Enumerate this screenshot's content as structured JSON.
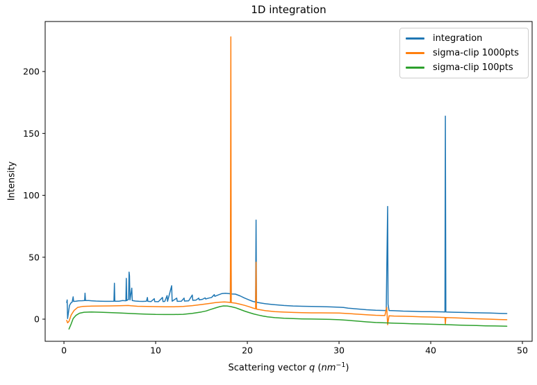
{
  "figure": {
    "title": "1D integration"
  },
  "axes": {
    "ylabel": "Intensity",
    "xlabel_parts": {
      "prefix": "Scattering vector ",
      "symbol": "q",
      "open": " (",
      "unit": "nm",
      "exponent": "−1",
      "close": ")"
    }
  },
  "legend": {
    "position": "upper right",
    "items": [
      {
        "label": "integration"
      },
      {
        "label": "sigma-clip 1000pts"
      },
      {
        "label": "sigma-clip 100pts"
      }
    ]
  },
  "chart_data": {
    "type": "line",
    "title": "1D integration",
    "xlabel": "Scattering vector q (nm⁻¹)",
    "ylabel": "Intensity",
    "xlim": [
      -2.05,
      51.06
    ],
    "ylim": [
      -17.9,
      240.4
    ],
    "xticks": [
      0,
      10,
      20,
      30,
      40,
      50
    ],
    "yticks": [
      0,
      50,
      100,
      150,
      200
    ],
    "grid": false,
    "legend_position": "upper right",
    "frame_color": "#000000",
    "line_width": 1.5,
    "series": [
      {
        "name": "integration",
        "color": "#1f77b4",
        "points": [
          [
            0.3,
            13.5
          ],
          [
            0.35,
            15.5
          ],
          [
            0.4,
            0.5
          ],
          [
            0.5,
            6
          ],
          [
            0.6,
            11
          ],
          [
            0.75,
            13
          ],
          [
            0.9,
            13.8
          ],
          [
            1.0,
            18
          ],
          [
            1.05,
            14.3
          ],
          [
            1.3,
            14.5
          ],
          [
            1.6,
            14.8
          ],
          [
            2.0,
            14.9
          ],
          [
            2.25,
            15
          ],
          [
            2.3,
            21
          ],
          [
            2.35,
            15
          ],
          [
            2.7,
            15
          ],
          [
            3.0,
            14.8
          ],
          [
            3.5,
            14.6
          ],
          [
            4.0,
            14.5
          ],
          [
            4.5,
            14.4
          ],
          [
            5.0,
            14.4
          ],
          [
            5.45,
            14.5
          ],
          [
            5.5,
            29
          ],
          [
            5.55,
            14.5
          ],
          [
            6.0,
            14.5
          ],
          [
            6.4,
            15
          ],
          [
            6.75,
            14.8
          ],
          [
            6.8,
            33
          ],
          [
            6.85,
            15
          ],
          [
            7.05,
            16
          ],
          [
            7.1,
            38
          ],
          [
            7.15,
            35
          ],
          [
            7.2,
            15.5
          ],
          [
            7.4,
            25
          ],
          [
            7.45,
            15
          ],
          [
            7.8,
            14.6
          ],
          [
            8.2,
            14.4
          ],
          [
            8.6,
            14.3
          ],
          [
            9.0,
            14.5
          ],
          [
            9.1,
            17.5
          ],
          [
            9.15,
            14.4
          ],
          [
            9.5,
            14.2
          ],
          [
            9.85,
            16.5
          ],
          [
            9.9,
            14.2
          ],
          [
            10.3,
            14.1
          ],
          [
            10.75,
            17.5
          ],
          [
            10.8,
            14.2
          ],
          [
            11.0,
            14.3
          ],
          [
            11.25,
            19
          ],
          [
            11.3,
            14.4
          ],
          [
            11.75,
            27
          ],
          [
            11.8,
            14.5
          ],
          [
            12.3,
            17
          ],
          [
            12.35,
            14.4
          ],
          [
            12.8,
            14.5
          ],
          [
            13.1,
            17
          ],
          [
            13.15,
            14.6
          ],
          [
            13.6,
            14.8
          ],
          [
            14.0,
            19.5
          ],
          [
            14.05,
            15.2
          ],
          [
            14.4,
            15.4
          ],
          [
            14.7,
            17
          ],
          [
            14.75,
            15.6
          ],
          [
            15.1,
            16
          ],
          [
            15.4,
            17.2
          ],
          [
            15.45,
            16.3
          ],
          [
            15.8,
            17
          ],
          [
            16.1,
            17.5
          ],
          [
            16.4,
            19.8
          ],
          [
            16.45,
            18.4
          ],
          [
            16.8,
            19.5
          ],
          [
            17.2,
            20.6
          ],
          [
            17.6,
            20.9
          ],
          [
            18.0,
            20.6
          ],
          [
            18.15,
            20.4
          ],
          [
            18.2,
            105
          ],
          [
            18.25,
            20.3
          ],
          [
            18.7,
            20.2
          ],
          [
            19.2,
            18.8
          ],
          [
            19.7,
            17
          ],
          [
            20.2,
            15.5
          ],
          [
            20.6,
            14.3
          ],
          [
            20.9,
            13.8
          ],
          [
            20.95,
            80
          ],
          [
            21.0,
            13.6
          ],
          [
            21.5,
            13
          ],
          [
            22.0,
            12.4
          ],
          [
            22.5,
            12
          ],
          [
            23.0,
            11.6
          ],
          [
            24.0,
            11
          ],
          [
            25.0,
            10.6
          ],
          [
            26.0,
            10.4
          ],
          [
            27.0,
            10.2
          ],
          [
            28.0,
            10.1
          ],
          [
            29.0,
            9.9
          ],
          [
            30.0,
            9.6
          ],
          [
            30.5,
            9.4
          ],
          [
            31.0,
            8.9
          ],
          [
            32.0,
            8.2
          ],
          [
            33.0,
            7.6
          ],
          [
            34.0,
            7.2
          ],
          [
            35.0,
            7.0
          ],
          [
            35.15,
            7.2
          ],
          [
            35.2,
            38
          ],
          [
            35.3,
            91
          ],
          [
            35.35,
            12
          ],
          [
            35.45,
            7
          ],
          [
            36.0,
            6.8
          ],
          [
            37.0,
            6.5
          ],
          [
            38.0,
            6.3
          ],
          [
            39.0,
            6.1
          ],
          [
            40.0,
            6.0
          ],
          [
            41.0,
            5.9
          ],
          [
            41.55,
            5.8
          ],
          [
            41.6,
            164
          ],
          [
            41.65,
            5.8
          ],
          [
            42.5,
            5.6
          ],
          [
            43.5,
            5.4
          ],
          [
            44.5,
            5.2
          ],
          [
            45.5,
            5.1
          ],
          [
            46.5,
            4.9
          ],
          [
            47.5,
            4.7
          ],
          [
            48.3,
            4.5
          ]
        ]
      },
      {
        "name": "sigma-clip 1000pts",
        "color": "#ff7f0e",
        "points": [
          [
            0.3,
            -1
          ],
          [
            0.4,
            -3
          ],
          [
            0.55,
            -1.8
          ],
          [
            0.8,
            3.5
          ],
          [
            1.1,
            7
          ],
          [
            1.5,
            9.5
          ],
          [
            2.0,
            10.2
          ],
          [
            2.5,
            10.4
          ],
          [
            3.0,
            10.5
          ],
          [
            4.0,
            10.6
          ],
          [
            5.0,
            10.7
          ],
          [
            6.0,
            10.8
          ],
          [
            7.0,
            11
          ],
          [
            7.3,
            10.8
          ],
          [
            8.0,
            10.4
          ],
          [
            9.0,
            10.2
          ],
          [
            10.0,
            10.1
          ],
          [
            11.0,
            10.0
          ],
          [
            12.0,
            10.0
          ],
          [
            13.0,
            10.3
          ],
          [
            14.0,
            10.9
          ],
          [
            15.0,
            11.8
          ],
          [
            16.0,
            12.8
          ],
          [
            16.5,
            13.3
          ],
          [
            17.0,
            13.7
          ],
          [
            17.5,
            13.9
          ],
          [
            18.0,
            13.6
          ],
          [
            18.15,
            13.4
          ],
          [
            18.2,
            228
          ],
          [
            18.25,
            13.3
          ],
          [
            18.7,
            12.9
          ],
          [
            19.2,
            12.1
          ],
          [
            19.7,
            11.1
          ],
          [
            20.2,
            10
          ],
          [
            20.6,
            9
          ],
          [
            20.9,
            8.3
          ],
          [
            20.95,
            46
          ],
          [
            21.0,
            8.1
          ],
          [
            21.5,
            7.4
          ],
          [
            22.0,
            6.8
          ],
          [
            23.0,
            6.1
          ],
          [
            24.0,
            5.7
          ],
          [
            25.0,
            5.4
          ],
          [
            26.0,
            5.2
          ],
          [
            27.0,
            5.1
          ],
          [
            28.0,
            5.05
          ],
          [
            29.0,
            5.0
          ],
          [
            30.0,
            4.9
          ],
          [
            31.0,
            4.5
          ],
          [
            32.0,
            4.0
          ],
          [
            33.0,
            3.5
          ],
          [
            34.0,
            3.1
          ],
          [
            35.0,
            2.9
          ],
          [
            35.2,
            9.5
          ],
          [
            35.3,
            -4.5
          ],
          [
            35.45,
            2.7
          ],
          [
            36.0,
            2.5
          ],
          [
            37.0,
            2.3
          ],
          [
            38.0,
            2.1
          ],
          [
            39.0,
            1.9
          ],
          [
            40.0,
            1.7
          ],
          [
            41.0,
            1.5
          ],
          [
            41.55,
            1.4
          ],
          [
            41.6,
            -4
          ],
          [
            41.65,
            1.3
          ],
          [
            42.5,
            1.1
          ],
          [
            43.5,
            0.8
          ],
          [
            44.5,
            0.5
          ],
          [
            45.5,
            0.2
          ],
          [
            46.5,
            0
          ],
          [
            47.5,
            -0.3
          ],
          [
            48.3,
            -0.5
          ]
        ]
      },
      {
        "name": "sigma-clip 100pts",
        "color": "#2ca02c",
        "points": [
          [
            0.55,
            -8
          ],
          [
            0.75,
            -4.5
          ],
          [
            1.0,
            0.5
          ],
          [
            1.3,
            3
          ],
          [
            1.7,
            4.8
          ],
          [
            2.2,
            5.6
          ],
          [
            3.0,
            5.8
          ],
          [
            4.0,
            5.6
          ],
          [
            5.0,
            5.3
          ],
          [
            6.0,
            5.0
          ],
          [
            7.0,
            4.7
          ],
          [
            8.0,
            4.3
          ],
          [
            9.0,
            4.0
          ],
          [
            10.0,
            3.8
          ],
          [
            11.0,
            3.7
          ],
          [
            12.0,
            3.7
          ],
          [
            13.0,
            3.9
          ],
          [
            14.0,
            4.6
          ],
          [
            15.0,
            5.8
          ],
          [
            15.5,
            6.6
          ],
          [
            16.0,
            7.8
          ],
          [
            16.5,
            9.0
          ],
          [
            17.0,
            10.1
          ],
          [
            17.4,
            10.7
          ],
          [
            17.8,
            10.6
          ],
          [
            18.2,
            10.1
          ],
          [
            18.7,
            9.2
          ],
          [
            19.2,
            7.9
          ],
          [
            19.7,
            6.5
          ],
          [
            20.2,
            5.3
          ],
          [
            20.7,
            4.2
          ],
          [
            21.2,
            3.3
          ],
          [
            21.7,
            2.5
          ],
          [
            22.2,
            1.9
          ],
          [
            23.0,
            1.2
          ],
          [
            24.0,
            0.7
          ],
          [
            25.0,
            0.4
          ],
          [
            26.0,
            0.2
          ],
          [
            27.0,
            0.1
          ],
          [
            28.0,
            0
          ],
          [
            29.0,
            -0.2
          ],
          [
            30.0,
            -0.5
          ],
          [
            31.0,
            -1.0
          ],
          [
            32.0,
            -1.6
          ],
          [
            33.0,
            -2.2
          ],
          [
            34.0,
            -2.7
          ],
          [
            35.0,
            -3.0
          ],
          [
            36.0,
            -3.3
          ],
          [
            37.0,
            -3.5
          ],
          [
            38.0,
            -3.7
          ],
          [
            39.0,
            -3.9
          ],
          [
            40.0,
            -4.1
          ],
          [
            41.0,
            -4.3
          ],
          [
            42.0,
            -4.5
          ],
          [
            43.0,
            -4.8
          ],
          [
            44.0,
            -5.0
          ],
          [
            45.0,
            -5.2
          ],
          [
            46.0,
            -5.4
          ],
          [
            47.0,
            -5.5
          ],
          [
            48.3,
            -5.7
          ]
        ]
      }
    ]
  }
}
